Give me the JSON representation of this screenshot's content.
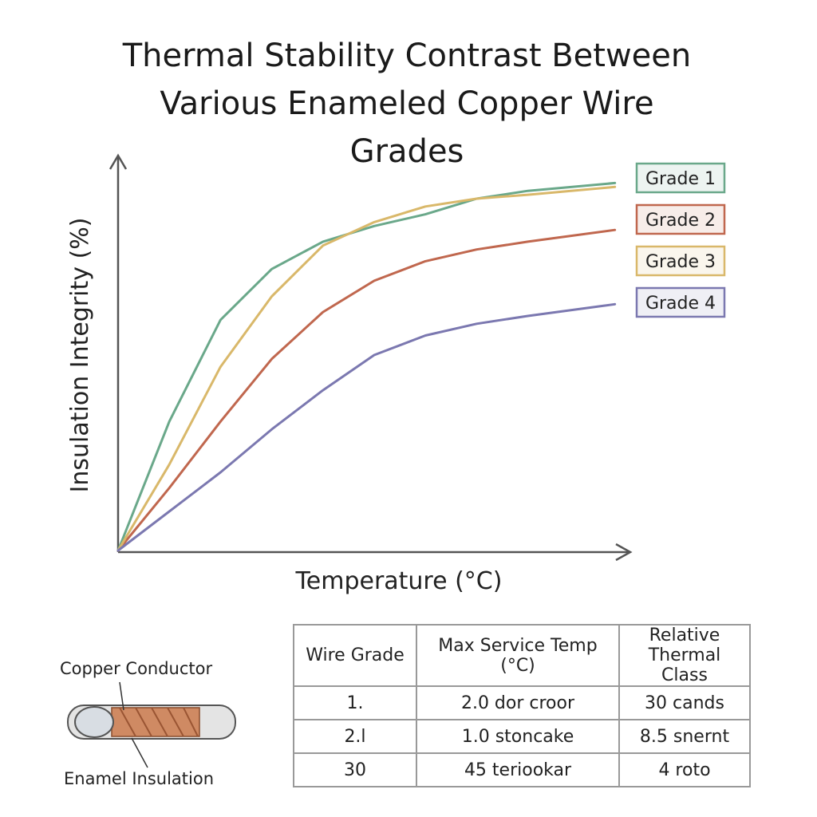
{
  "chart_data": {
    "type": "line",
    "title": "Thermal Stability Contrast Between Various Enameled Copper Wire Grades",
    "x_label": "Temperature (°C)",
    "y_label": "Insulation Integrity (%)",
    "x": [
      0,
      10,
      20,
      30,
      40,
      50,
      60,
      70,
      80,
      97
    ],
    "xlim": [
      0,
      100
    ],
    "ylim": [
      0,
      100
    ],
    "legend": "right",
    "series": [
      {
        "name": "Grade 1",
        "color": "#6aa88a",
        "values": [
          0,
          33,
          59,
          72,
          79,
          83,
          86,
          90,
          92,
          94
        ]
      },
      {
        "name": "Grade 2",
        "color": "#c0674e",
        "values": [
          0,
          16,
          33,
          49,
          61,
          69,
          74,
          77,
          79,
          82
        ]
      },
      {
        "name": "Grade 3",
        "color": "#d9b86a",
        "values": [
          0,
          22,
          47,
          65,
          78,
          84,
          88,
          90,
          91,
          93
        ]
      },
      {
        "name": "Grade 4",
        "color": "#7b78b0",
        "values": [
          0,
          10,
          20,
          31,
          41,
          50,
          55,
          58,
          60,
          63
        ]
      }
    ]
  },
  "table": {
    "header": [
      "Wire Grade",
      "Max Service Temp (°C)",
      "Relative Thermal Class"
    ],
    "rows": [
      [
        "1.",
        "2.0  dor croor",
        "30  cands"
      ],
      [
        "2.l",
        "1.0  stoncake",
        "8.5  snernt"
      ],
      [
        "30",
        "45  teriookar",
        "4  roto"
      ]
    ]
  },
  "diagram": {
    "conductor_label": "Copper Conductor",
    "insulation_label": "Enamel Insulation"
  }
}
